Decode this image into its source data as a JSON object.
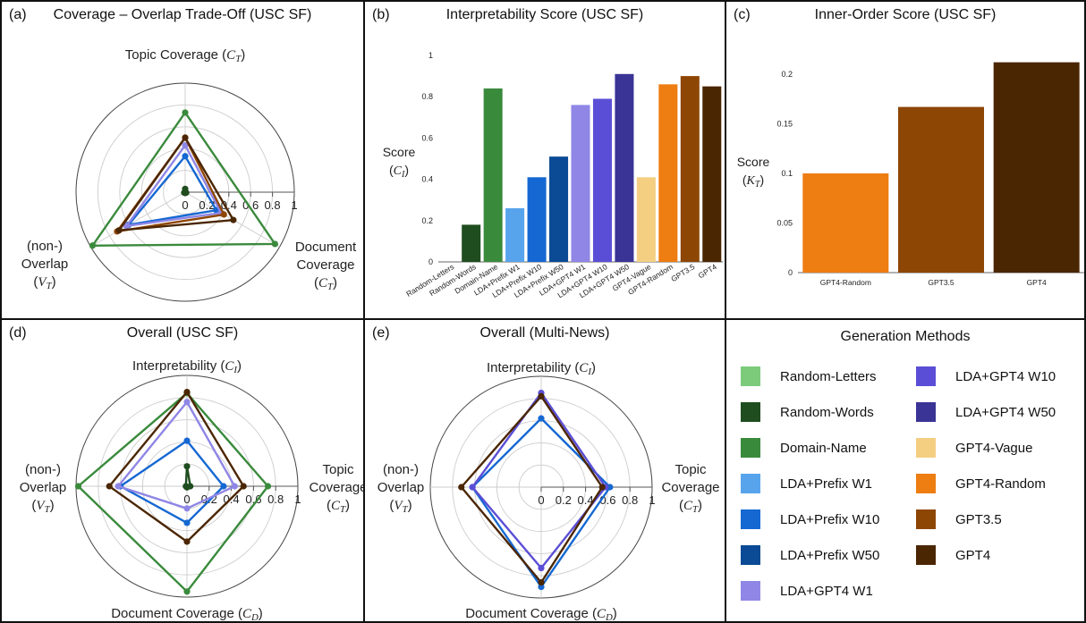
{
  "colors": {
    "Random-Letters": "#7ccb7a",
    "Random-Words": "#1f4d1f",
    "Domain-Name": "#3a8a3c",
    "LDA+Prefix W1": "#58a4ec",
    "LDA+Prefix W10": "#1568d2",
    "LDA+Prefix W50": "#0b4a94",
    "LDA+GPT4 W1": "#8f86e6",
    "LDA+GPT4 W10": "#5b4ed6",
    "LDA+GPT4 W50": "#3a3496",
    "GPT4-Vague": "#f4cf82",
    "GPT4-Random": "#ee7d12",
    "GPT3.5": "#8e4604",
    "GPT4": "#4b2603"
  },
  "panels": {
    "a": {
      "label": "(a)",
      "title": "Coverage – Overlap Trade-Off (USC SF)"
    },
    "b": {
      "label": "(b)",
      "title": "Interpretability Score (USC SF)"
    },
    "c": {
      "label": "(c)",
      "title": "Inner-Order Score (USC SF)"
    },
    "d": {
      "label": "(d)",
      "title": "Overall (USC SF)"
    },
    "e": {
      "label": "(e)",
      "title": "Overall (Multi-News)"
    }
  },
  "legend": {
    "title": "Generation Methods",
    "items": [
      "Random-Letters",
      "Random-Words",
      "Domain-Name",
      "LDA+Prefix W1",
      "LDA+Prefix W10",
      "LDA+Prefix W50",
      "LDA+GPT4 W1",
      "LDA+GPT4 W10",
      "LDA+GPT4 W50",
      "GPT4-Vague",
      "GPT4-Random",
      "GPT3.5",
      "GPT4"
    ]
  },
  "chart_data": [
    {
      "id": "a",
      "type": "radar",
      "title": "Coverage – Overlap Trade-Off (USC SF)",
      "axes": [
        {
          "name": "Topic Coverage",
          "sym": "C",
          "sub": "T"
        },
        {
          "name": "Document Coverage",
          "sym": "C",
          "sub": "T"
        },
        {
          "name": "(non-) Overlap",
          "sym": "V",
          "sub": "T"
        }
      ],
      "range": [
        0,
        1
      ],
      "tick_labels": [
        "0",
        "0.2",
        "0.4",
        "0.6",
        "0.8",
        "1"
      ],
      "series": [
        {
          "name": "Random-Words",
          "values": [
            0.03,
            0.01,
            0.01
          ]
        },
        {
          "name": "Domain-Name",
          "values": [
            0.73,
            0.95,
            0.98
          ]
        },
        {
          "name": "LDA+Prefix W10",
          "values": [
            0.33,
            0.33,
            0.6
          ]
        },
        {
          "name": "LDA+GPT4 W1",
          "values": [
            0.43,
            0.38,
            0.62
          ]
        },
        {
          "name": "GPT3.5",
          "values": [
            0.5,
            0.41,
            0.72
          ]
        },
        {
          "name": "GPT4",
          "values": [
            0.5,
            0.51,
            0.7
          ]
        }
      ]
    },
    {
      "id": "b",
      "type": "bar",
      "title": "Interpretability Score (USC SF)",
      "ylabel": "Score",
      "ylabel_sym": "C",
      "ylabel_sub": "I",
      "ylim": [
        0,
        1
      ],
      "yticks": [
        "0",
        "0.2",
        "0.4",
        "0.6",
        "0.8",
        "1"
      ],
      "categories": [
        "Random-Letters",
        "Random-Words",
        "Domain-Name",
        "LDA+Prefix W1",
        "LDA+Prefix W10",
        "LDA+Prefix W50",
        "LDA+GPT4 W1",
        "LDA+GPT4 W10",
        "LDA+GPT4 W50",
        "GPT4-Vague",
        "GPT4-Random",
        "GPT3.5",
        "GPT4"
      ],
      "values": [
        0,
        0.18,
        0.84,
        0.26,
        0.41,
        0.51,
        0.76,
        0.79,
        0.91,
        0.41,
        0.86,
        0.9,
        0.85
      ]
    },
    {
      "id": "c",
      "type": "bar",
      "title": "Inner-Order Score (USC SF)",
      "ylabel": "Score",
      "ylabel_sym": "K",
      "ylabel_sub": "T",
      "ylim": [
        0,
        0.22
      ],
      "yticks": [
        "0",
        "0.05",
        "0.1",
        "0.15",
        "0.2"
      ],
      "categories": [
        "GPT4-Random",
        "GPT3.5",
        "GPT4"
      ],
      "values": [
        0.1,
        0.167,
        0.212
      ]
    },
    {
      "id": "d",
      "type": "radar",
      "title": "Overall (USC SF)",
      "axes": [
        {
          "name": "Interpretability",
          "sym": "C",
          "sub": "I"
        },
        {
          "name": "Topic Coverage",
          "sym": "C",
          "sub": "T"
        },
        {
          "name": "Document Coverage",
          "sym": "C",
          "sub": "D"
        },
        {
          "name": "(non-) Overlap",
          "sym": "V",
          "sub": "T"
        }
      ],
      "range": [
        0,
        1
      ],
      "tick_labels": [
        "0",
        "0.2",
        "0.4",
        "0.6",
        "0.8",
        "1"
      ],
      "series": [
        {
          "name": "Random-Words",
          "values": [
            0.18,
            0.03,
            0.01,
            0.01
          ]
        },
        {
          "name": "Domain-Name",
          "values": [
            0.84,
            0.73,
            0.95,
            0.98
          ]
        },
        {
          "name": "LDA+Prefix W10",
          "values": [
            0.41,
            0.33,
            0.33,
            0.6
          ]
        },
        {
          "name": "LDA+GPT4 W1",
          "values": [
            0.76,
            0.43,
            0.2,
            0.62
          ]
        },
        {
          "name": "GPT4",
          "values": [
            0.85,
            0.51,
            0.5,
            0.7
          ]
        }
      ]
    },
    {
      "id": "e",
      "type": "radar",
      "title": "Overall (Multi-News)",
      "axes": [
        {
          "name": "Interpretability",
          "sym": "C",
          "sub": "I"
        },
        {
          "name": "Topic Coverage",
          "sym": "C",
          "sub": "T"
        },
        {
          "name": "Document Coverage",
          "sym": "C",
          "sub": "D"
        },
        {
          "name": "(non-) Overlap",
          "sym": "V",
          "sub": "T"
        }
      ],
      "range": [
        0,
        1
      ],
      "tick_labels": [
        "0",
        "0.2",
        "0.4",
        "0.6",
        "0.8",
        "1"
      ],
      "series": [
        {
          "name": "LDA+Prefix W10",
          "values": [
            0.62,
            0.62,
            0.9,
            0.62
          ]
        },
        {
          "name": "LDA+GPT4 W10",
          "values": [
            0.85,
            0.58,
            0.73,
            0.62
          ]
        },
        {
          "name": "GPT4",
          "values": [
            0.82,
            0.55,
            0.86,
            0.72
          ]
        }
      ]
    }
  ]
}
